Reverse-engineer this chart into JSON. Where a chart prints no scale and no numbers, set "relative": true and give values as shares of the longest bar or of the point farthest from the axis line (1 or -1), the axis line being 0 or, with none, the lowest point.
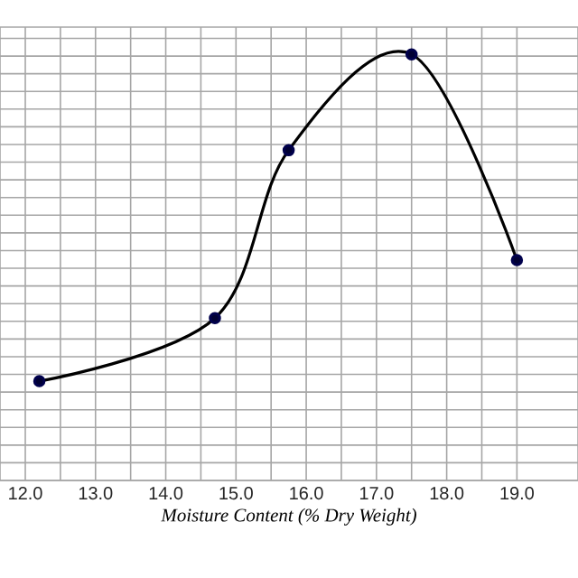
{
  "chart_data": {
    "type": "line",
    "xlabel": "Moisture Content (% Dry Weight)",
    "relative": true,
    "x": [
      12.2,
      14.7,
      15.75,
      17.5,
      19.0
    ],
    "series": [
      {
        "color": "#000000",
        "values": [
          0.233,
          0.381,
          0.775,
          1,
          0.517
        ]
      }
    ],
    "xlim": [
      11.64,
      19.87
    ],
    "xticks": [
      {
        "value": 12,
        "label": "12.0"
      },
      {
        "value": 13,
        "label": "13.0"
      },
      {
        "value": 14,
        "label": "14.0"
      },
      {
        "value": 15,
        "label": "15.0"
      },
      {
        "value": 16,
        "label": "16.0"
      },
      {
        "value": 17,
        "label": "17.0"
      },
      {
        "value": 18,
        "label": "18.0"
      },
      {
        "value": 19,
        "label": "19.0"
      }
    ],
    "grid": true,
    "marker": "circle",
    "line_style": "solid"
  }
}
